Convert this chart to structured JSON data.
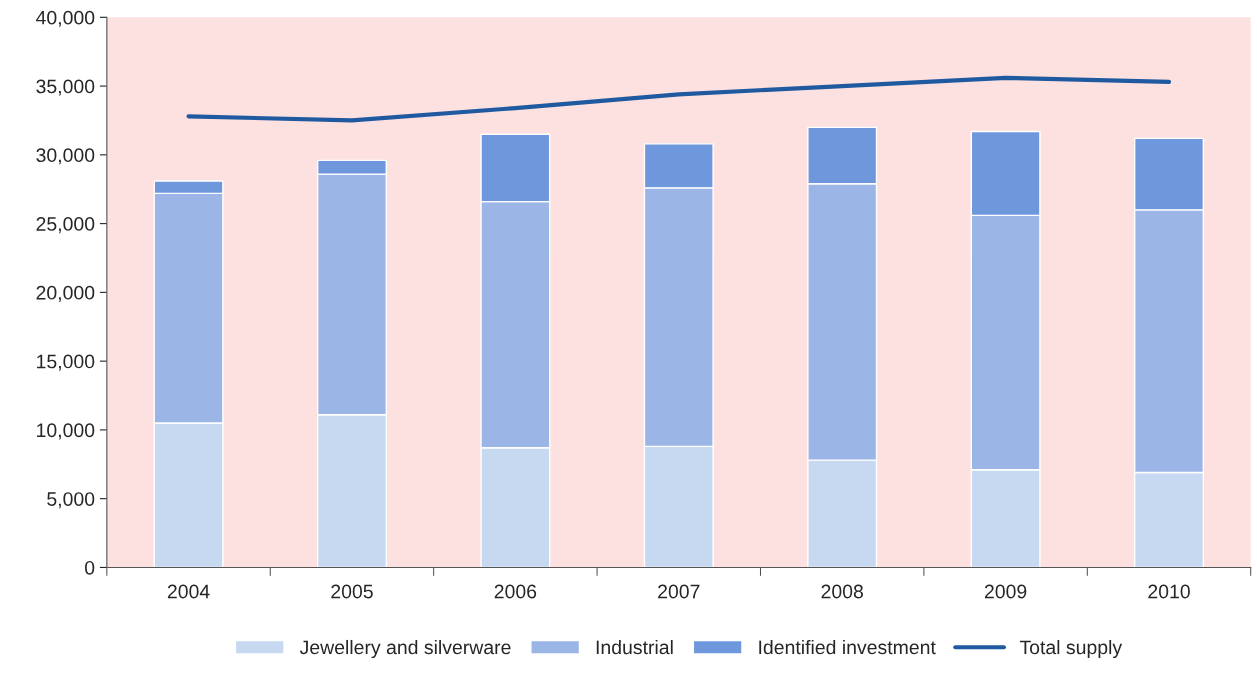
{
  "chart_data": {
    "type": "bar",
    "stacked": true,
    "categories": [
      "2004",
      "2005",
      "2006",
      "2007",
      "2008",
      "2009",
      "2010"
    ],
    "series": [
      {
        "name": "Jewellery and silverware",
        "color": "#c6d9f1",
        "values": [
          10500,
          11100,
          8700,
          8800,
          7800,
          7100,
          6900
        ]
      },
      {
        "name": "Industrial",
        "color": "#9bb5e6",
        "values": [
          16700,
          17500,
          17900,
          18800,
          20100,
          18500,
          19100
        ]
      },
      {
        "name": "Identified investment",
        "color": "#6f98dc",
        "values": [
          900,
          1000,
          4900,
          3200,
          4100,
          6100,
          5200
        ]
      },
      {
        "name": "Total supply",
        "type": "line",
        "color": "#1f5aa0",
        "values": [
          32800,
          32500,
          33400,
          34400,
          35000,
          35600,
          35300
        ]
      }
    ],
    "ylim": [
      0,
      40000
    ],
    "yticks": [
      {
        "value": 0,
        "label": "0"
      },
      {
        "value": 5000,
        "label": "5,000"
      },
      {
        "value": 10000,
        "label": "10,000"
      },
      {
        "value": 15000,
        "label": "15,000"
      },
      {
        "value": 20000,
        "label": "20,000"
      },
      {
        "value": 25000,
        "label": "25,000"
      },
      {
        "value": 30000,
        "label": "30,000"
      },
      {
        "value": 35000,
        "label": "35,000"
      },
      {
        "value": 40000,
        "label": "40,000"
      }
    ],
    "grid": false,
    "legend": "bottom",
    "marker": "none"
  }
}
